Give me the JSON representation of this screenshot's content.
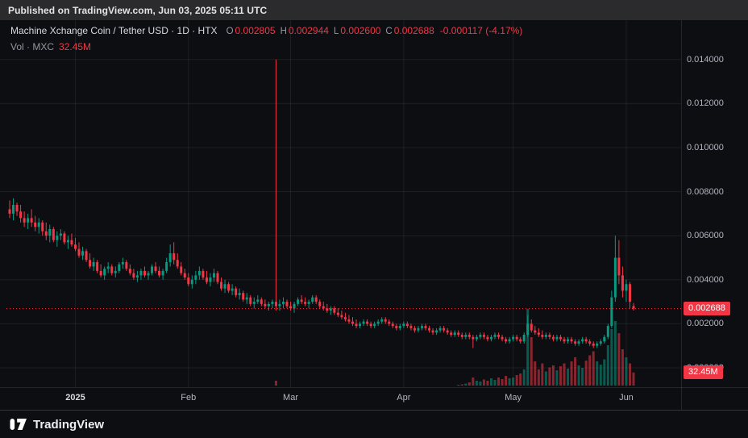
{
  "published_bar": {
    "text": "Published on TradingView.com, Jun 03, 2025 05:11 UTC"
  },
  "legend": {
    "title": "Machine Xchange Coin / Tether USD · 1D · HTX",
    "ohlc": [
      {
        "label": "O",
        "value": "0.002805"
      },
      {
        "label": "H",
        "value": "0.002944"
      },
      {
        "label": "L",
        "value": "0.002600"
      },
      {
        "label": "C",
        "value": "0.002688"
      }
    ],
    "change": "-0.000117 (-4.17%)",
    "volume_label": "Vol · MXC",
    "volume_value": "32.45M"
  },
  "badges": {
    "price": "0.002688",
    "volume": "32.45M"
  },
  "footer": {
    "brand": "TradingView"
  },
  "colors": {
    "up": "#089981",
    "down": "#f23645",
    "vol_up": "rgba(8,153,129,0.55)",
    "vol_down": "rgba(242,54,69,0.55)",
    "bg": "#0d0e12",
    "grid": "rgba(255,255,255,0.07)",
    "axis_text": "#b2b5be",
    "badge_bg": "#f23645"
  },
  "chart_data": {
    "type": "candlestick",
    "title": "Machine Xchange Coin / Tether USD",
    "exchange": "HTX",
    "interval": "1D",
    "note": "candle prices are in units of 0.0001 USDT; volumes in millions of MXC; values estimated from chart",
    "price_unit": 0.0001,
    "ylim": [
      0,
      0.0158
    ],
    "price_ticks": [
      {
        "label": "0.014000",
        "value": 140
      },
      {
        "label": "0.012000",
        "value": 120
      },
      {
        "label": "0.010000",
        "value": 100
      },
      {
        "label": "0.008000",
        "value": 80
      },
      {
        "label": "0.006000",
        "value": 60
      },
      {
        "label": "0.004000",
        "value": 40
      },
      {
        "label": "0.002000",
        "value": 20
      },
      {
        "label": "0.000000",
        "value": 0
      }
    ],
    "time_ticks": [
      {
        "label": "2025",
        "day": 18,
        "strong": true
      },
      {
        "label": "Feb",
        "day": 49
      },
      {
        "label": "Mar",
        "day": 77
      },
      {
        "label": "Apr",
        "day": 108
      },
      {
        "label": "May",
        "day": 138
      },
      {
        "label": "Jun",
        "day": 169
      }
    ],
    "last": {
      "open": 0.002805,
      "high": 0.002944,
      "low": 0.0026,
      "close": 0.002688,
      "change": -0.000117,
      "change_pct": -4.17,
      "volume": "32.45M"
    },
    "candles_format": [
      "open",
      "high",
      "low",
      "close",
      "volume"
    ],
    "candles": [
      [
        72,
        76,
        68,
        70,
        0
      ],
      [
        70,
        77,
        67,
        74,
        0
      ],
      [
        74,
        75,
        69,
        71,
        0
      ],
      [
        71,
        74,
        66,
        68,
        0
      ],
      [
        68,
        71,
        64,
        66,
        0
      ],
      [
        66,
        70,
        63,
        68,
        0
      ],
      [
        68,
        72,
        64,
        66,
        0
      ],
      [
        66,
        69,
        62,
        64,
        0
      ],
      [
        64,
        68,
        61,
        66,
        0
      ],
      [
        66,
        67,
        60,
        62,
        0
      ],
      [
        62,
        66,
        58,
        60,
        0
      ],
      [
        60,
        65,
        57,
        63,
        0
      ],
      [
        63,
        64,
        57,
        58,
        0
      ],
      [
        58,
        62,
        55,
        60,
        0
      ],
      [
        60,
        63,
        58,
        61,
        0
      ],
      [
        61,
        62,
        56,
        57,
        0
      ],
      [
        57,
        60,
        54,
        58,
        0
      ],
      [
        58,
        61,
        55,
        56,
        0
      ],
      [
        56,
        59,
        53,
        54,
        0
      ],
      [
        54,
        57,
        50,
        51,
        0
      ],
      [
        51,
        55,
        49,
        53,
        0
      ],
      [
        53,
        54,
        48,
        49,
        0
      ],
      [
        49,
        52,
        45,
        46,
        0
      ],
      [
        46,
        50,
        44,
        48,
        0
      ],
      [
        48,
        49,
        43,
        44,
        0
      ],
      [
        44,
        47,
        41,
        42,
        0
      ],
      [
        42,
        46,
        40,
        45,
        0
      ],
      [
        45,
        48,
        43,
        46,
        0
      ],
      [
        46,
        47,
        42,
        43,
        0
      ],
      [
        43,
        46,
        41,
        44,
        0
      ],
      [
        44,
        48,
        43,
        47,
        0
      ],
      [
        47,
        50,
        45,
        48,
        0
      ],
      [
        48,
        49,
        44,
        45,
        0
      ],
      [
        45,
        47,
        42,
        43,
        0
      ],
      [
        43,
        45,
        40,
        41,
        0
      ],
      [
        41,
        44,
        39,
        42,
        0
      ],
      [
        42,
        45,
        40,
        44,
        0
      ],
      [
        44,
        46,
        41,
        42,
        0
      ],
      [
        42,
        44,
        40,
        43,
        0
      ],
      [
        43,
        47,
        42,
        46,
        0
      ],
      [
        46,
        48,
        43,
        44,
        0
      ],
      [
        44,
        46,
        41,
        42,
        0
      ],
      [
        42,
        45,
        40,
        44,
        0
      ],
      [
        44,
        50,
        43,
        48,
        0
      ],
      [
        48,
        56,
        46,
        52,
        0
      ],
      [
        52,
        57,
        47,
        49,
        0
      ],
      [
        49,
        52,
        45,
        46,
        0
      ],
      [
        46,
        48,
        42,
        43,
        0
      ],
      [
        43,
        45,
        40,
        41,
        0
      ],
      [
        41,
        43,
        37,
        38,
        0
      ],
      [
        38,
        42,
        36,
        40,
        0
      ],
      [
        40,
        44,
        38,
        42,
        0
      ],
      [
        42,
        46,
        40,
        44,
        0
      ],
      [
        44,
        45,
        40,
        41,
        0
      ],
      [
        41,
        44,
        38,
        39,
        0
      ],
      [
        39,
        43,
        37,
        41,
        0
      ],
      [
        41,
        45,
        39,
        43,
        0
      ],
      [
        43,
        44,
        38,
        39,
        0
      ],
      [
        39,
        41,
        35,
        36,
        0
      ],
      [
        36,
        40,
        34,
        38,
        0
      ],
      [
        38,
        39,
        34,
        35,
        0
      ],
      [
        35,
        38,
        33,
        36,
        0
      ],
      [
        36,
        37,
        32,
        33,
        0
      ],
      [
        33,
        36,
        31,
        34,
        0
      ],
      [
        34,
        35,
        30,
        31,
        0
      ],
      [
        31,
        34,
        29,
        32,
        0
      ],
      [
        32,
        33,
        28,
        29,
        0
      ],
      [
        29,
        32,
        27,
        30,
        0
      ],
      [
        30,
        33,
        29,
        31,
        0
      ],
      [
        31,
        32,
        28,
        29,
        0
      ],
      [
        29,
        31,
        27,
        28,
        0
      ],
      [
        28,
        30,
        26,
        29,
        0
      ],
      [
        29,
        31,
        27,
        30,
        0
      ],
      [
        30,
        140,
        26,
        28,
        12
      ],
      [
        28,
        31,
        26,
        29,
        0
      ],
      [
        29,
        32,
        27,
        30,
        0
      ],
      [
        30,
        31,
        27,
        28,
        0
      ],
      [
        28,
        30,
        26,
        27,
        0
      ],
      [
        27,
        30,
        25,
        29,
        0
      ],
      [
        29,
        32,
        28,
        31,
        0
      ],
      [
        31,
        33,
        29,
        30,
        0
      ],
      [
        30,
        32,
        28,
        29,
        0
      ],
      [
        29,
        31,
        27,
        30,
        0
      ],
      [
        30,
        33,
        29,
        32,
        0
      ],
      [
        32,
        33,
        29,
        30,
        0
      ],
      [
        30,
        31,
        27,
        28,
        0
      ],
      [
        28,
        30,
        26,
        27,
        0
      ],
      [
        27,
        29,
        25,
        26,
        0
      ],
      [
        26,
        28,
        24,
        27,
        0
      ],
      [
        27,
        28,
        24,
        25,
        0
      ],
      [
        25,
        27,
        23,
        24,
        0
      ],
      [
        24,
        26,
        22,
        23,
        0
      ],
      [
        23,
        25,
        21,
        22,
        0
      ],
      [
        22,
        24,
        20,
        21,
        0
      ],
      [
        21,
        23,
        19,
        20,
        0
      ],
      [
        20,
        22,
        18,
        19,
        0
      ],
      [
        19,
        21,
        18,
        20,
        0
      ],
      [
        20,
        22,
        19,
        21,
        0
      ],
      [
        21,
        22,
        19,
        20,
        0
      ],
      [
        20,
        21,
        18,
        19,
        0
      ],
      [
        19,
        21,
        18,
        20,
        0
      ],
      [
        20,
        22,
        19,
        21,
        0
      ],
      [
        21,
        23,
        20,
        22,
        0
      ],
      [
        22,
        23,
        20,
        21,
        0
      ],
      [
        21,
        22,
        19,
        20,
        0
      ],
      [
        20,
        21,
        18,
        19,
        0
      ],
      [
        19,
        20,
        17,
        18,
        0
      ],
      [
        18,
        20,
        17,
        19,
        0
      ],
      [
        19,
        21,
        18,
        20,
        0
      ],
      [
        20,
        21,
        18,
        19,
        0
      ],
      [
        19,
        20,
        17,
        18,
        0
      ],
      [
        18,
        19,
        16,
        17,
        0
      ],
      [
        17,
        19,
        16,
        18,
        0
      ],
      [
        18,
        20,
        17,
        19,
        0
      ],
      [
        19,
        20,
        17,
        18,
        0
      ],
      [
        18,
        19,
        16,
        17,
        0
      ],
      [
        17,
        18,
        15,
        16,
        0
      ],
      [
        16,
        18,
        15,
        17,
        0
      ],
      [
        17,
        19,
        16,
        18,
        0
      ],
      [
        18,
        19,
        16,
        17,
        0
      ],
      [
        17,
        18,
        15,
        16,
        0
      ],
      [
        16,
        17,
        14,
        15,
        0
      ],
      [
        15,
        17,
        14,
        16,
        0
      ],
      [
        16,
        17,
        14,
        15,
        2
      ],
      [
        15,
        16,
        13,
        14,
        3
      ],
      [
        14,
        16,
        13,
        15,
        5
      ],
      [
        15,
        16,
        13,
        14,
        8
      ],
      [
        14,
        15,
        9,
        13,
        20
      ],
      [
        13,
        15,
        12,
        14,
        12
      ],
      [
        14,
        16,
        13,
        15,
        10
      ],
      [
        15,
        16,
        13,
        14,
        15
      ],
      [
        14,
        15,
        12,
        13,
        12
      ],
      [
        13,
        15,
        12,
        14,
        18
      ],
      [
        14,
        16,
        13,
        15,
        14
      ],
      [
        15,
        16,
        13,
        14,
        20
      ],
      [
        14,
        15,
        12,
        13,
        16
      ],
      [
        13,
        14,
        11,
        12,
        24
      ],
      [
        12,
        14,
        11,
        13,
        18
      ],
      [
        13,
        15,
        12,
        14,
        20
      ],
      [
        14,
        15,
        12,
        13,
        26
      ],
      [
        13,
        14,
        11,
        12,
        30
      ],
      [
        12,
        16,
        11,
        15,
        40
      ],
      [
        15,
        24,
        14,
        20,
        190
      ],
      [
        20,
        22,
        16,
        17,
        120
      ],
      [
        17,
        19,
        15,
        16,
        60
      ],
      [
        16,
        18,
        14,
        15,
        40
      ],
      [
        15,
        17,
        13,
        14,
        55
      ],
      [
        14,
        16,
        13,
        15,
        35
      ],
      [
        15,
        16,
        13,
        14,
        45
      ],
      [
        14,
        15,
        12,
        13,
        50
      ],
      [
        13,
        15,
        12,
        14,
        38
      ],
      [
        14,
        15,
        12,
        13,
        48
      ],
      [
        13,
        14,
        11,
        12,
        55
      ],
      [
        12,
        14,
        11,
        13,
        42
      ],
      [
        13,
        14,
        11,
        12,
        60
      ],
      [
        12,
        13,
        10,
        11,
        70
      ],
      [
        11,
        13,
        10,
        12,
        50
      ],
      [
        12,
        14,
        11,
        13,
        44
      ],
      [
        13,
        14,
        11,
        12,
        62
      ],
      [
        12,
        13,
        10,
        11,
        75
      ],
      [
        11,
        12,
        9,
        10,
        85
      ],
      [
        10,
        12,
        9,
        11,
        60
      ],
      [
        11,
        13,
        10,
        12,
        52
      ],
      [
        12,
        15,
        11,
        14,
        65
      ],
      [
        14,
        20,
        13,
        19,
        100
      ],
      [
        19,
        35,
        18,
        32,
        140
      ],
      [
        32,
        60,
        30,
        50,
        160
      ],
      [
        50,
        58,
        38,
        42,
        130
      ],
      [
        42,
        46,
        32,
        35,
        90
      ],
      [
        35,
        40,
        30,
        38,
        70
      ],
      [
        38,
        39,
        27,
        30,
        55
      ],
      [
        28.05,
        29.44,
        26,
        26.88,
        32.45
      ]
    ]
  }
}
